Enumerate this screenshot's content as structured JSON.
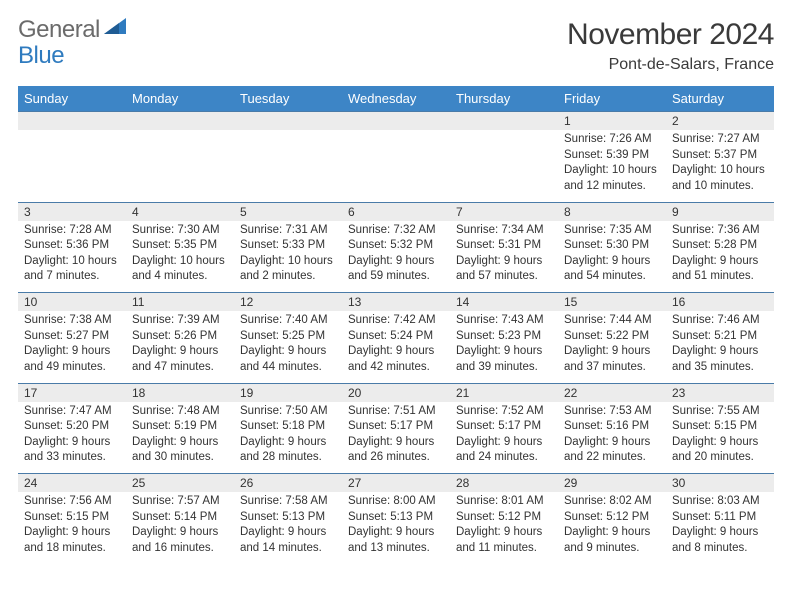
{
  "logo": {
    "text1": "General",
    "text2": "Blue"
  },
  "title": "November 2024",
  "location": "Pont-de-Salars, France",
  "colors": {
    "header_bg": "#3d85c6",
    "header_text": "#ffffff",
    "daynum_bg": "#ececec",
    "daynum_border": "#4a7ba8",
    "body_text": "#333333",
    "logo_gray": "#6b6b6b",
    "logo_blue": "#2f7bbf",
    "triangle_fill": "#2f7bbf"
  },
  "weekdays": [
    "Sunday",
    "Monday",
    "Tuesday",
    "Wednesday",
    "Thursday",
    "Friday",
    "Saturday"
  ],
  "weeks": [
    [
      null,
      null,
      null,
      null,
      null,
      {
        "n": "1",
        "sr": "Sunrise: 7:26 AM",
        "ss": "Sunset: 5:39 PM",
        "dl": "Daylight: 10 hours and 12 minutes."
      },
      {
        "n": "2",
        "sr": "Sunrise: 7:27 AM",
        "ss": "Sunset: 5:37 PM",
        "dl": "Daylight: 10 hours and 10 minutes."
      }
    ],
    [
      {
        "n": "3",
        "sr": "Sunrise: 7:28 AM",
        "ss": "Sunset: 5:36 PM",
        "dl": "Daylight: 10 hours and 7 minutes."
      },
      {
        "n": "4",
        "sr": "Sunrise: 7:30 AM",
        "ss": "Sunset: 5:35 PM",
        "dl": "Daylight: 10 hours and 4 minutes."
      },
      {
        "n": "5",
        "sr": "Sunrise: 7:31 AM",
        "ss": "Sunset: 5:33 PM",
        "dl": "Daylight: 10 hours and 2 minutes."
      },
      {
        "n": "6",
        "sr": "Sunrise: 7:32 AM",
        "ss": "Sunset: 5:32 PM",
        "dl": "Daylight: 9 hours and 59 minutes."
      },
      {
        "n": "7",
        "sr": "Sunrise: 7:34 AM",
        "ss": "Sunset: 5:31 PM",
        "dl": "Daylight: 9 hours and 57 minutes."
      },
      {
        "n": "8",
        "sr": "Sunrise: 7:35 AM",
        "ss": "Sunset: 5:30 PM",
        "dl": "Daylight: 9 hours and 54 minutes."
      },
      {
        "n": "9",
        "sr": "Sunrise: 7:36 AM",
        "ss": "Sunset: 5:28 PM",
        "dl": "Daylight: 9 hours and 51 minutes."
      }
    ],
    [
      {
        "n": "10",
        "sr": "Sunrise: 7:38 AM",
        "ss": "Sunset: 5:27 PM",
        "dl": "Daylight: 9 hours and 49 minutes."
      },
      {
        "n": "11",
        "sr": "Sunrise: 7:39 AM",
        "ss": "Sunset: 5:26 PM",
        "dl": "Daylight: 9 hours and 47 minutes."
      },
      {
        "n": "12",
        "sr": "Sunrise: 7:40 AM",
        "ss": "Sunset: 5:25 PM",
        "dl": "Daylight: 9 hours and 44 minutes."
      },
      {
        "n": "13",
        "sr": "Sunrise: 7:42 AM",
        "ss": "Sunset: 5:24 PM",
        "dl": "Daylight: 9 hours and 42 minutes."
      },
      {
        "n": "14",
        "sr": "Sunrise: 7:43 AM",
        "ss": "Sunset: 5:23 PM",
        "dl": "Daylight: 9 hours and 39 minutes."
      },
      {
        "n": "15",
        "sr": "Sunrise: 7:44 AM",
        "ss": "Sunset: 5:22 PM",
        "dl": "Daylight: 9 hours and 37 minutes."
      },
      {
        "n": "16",
        "sr": "Sunrise: 7:46 AM",
        "ss": "Sunset: 5:21 PM",
        "dl": "Daylight: 9 hours and 35 minutes."
      }
    ],
    [
      {
        "n": "17",
        "sr": "Sunrise: 7:47 AM",
        "ss": "Sunset: 5:20 PM",
        "dl": "Daylight: 9 hours and 33 minutes."
      },
      {
        "n": "18",
        "sr": "Sunrise: 7:48 AM",
        "ss": "Sunset: 5:19 PM",
        "dl": "Daylight: 9 hours and 30 minutes."
      },
      {
        "n": "19",
        "sr": "Sunrise: 7:50 AM",
        "ss": "Sunset: 5:18 PM",
        "dl": "Daylight: 9 hours and 28 minutes."
      },
      {
        "n": "20",
        "sr": "Sunrise: 7:51 AM",
        "ss": "Sunset: 5:17 PM",
        "dl": "Daylight: 9 hours and 26 minutes."
      },
      {
        "n": "21",
        "sr": "Sunrise: 7:52 AM",
        "ss": "Sunset: 5:17 PM",
        "dl": "Daylight: 9 hours and 24 minutes."
      },
      {
        "n": "22",
        "sr": "Sunrise: 7:53 AM",
        "ss": "Sunset: 5:16 PM",
        "dl": "Daylight: 9 hours and 22 minutes."
      },
      {
        "n": "23",
        "sr": "Sunrise: 7:55 AM",
        "ss": "Sunset: 5:15 PM",
        "dl": "Daylight: 9 hours and 20 minutes."
      }
    ],
    [
      {
        "n": "24",
        "sr": "Sunrise: 7:56 AM",
        "ss": "Sunset: 5:15 PM",
        "dl": "Daylight: 9 hours and 18 minutes."
      },
      {
        "n": "25",
        "sr": "Sunrise: 7:57 AM",
        "ss": "Sunset: 5:14 PM",
        "dl": "Daylight: 9 hours and 16 minutes."
      },
      {
        "n": "26",
        "sr": "Sunrise: 7:58 AM",
        "ss": "Sunset: 5:13 PM",
        "dl": "Daylight: 9 hours and 14 minutes."
      },
      {
        "n": "27",
        "sr": "Sunrise: 8:00 AM",
        "ss": "Sunset: 5:13 PM",
        "dl": "Daylight: 9 hours and 13 minutes."
      },
      {
        "n": "28",
        "sr": "Sunrise: 8:01 AM",
        "ss": "Sunset: 5:12 PM",
        "dl": "Daylight: 9 hours and 11 minutes."
      },
      {
        "n": "29",
        "sr": "Sunrise: 8:02 AM",
        "ss": "Sunset: 5:12 PM",
        "dl": "Daylight: 9 hours and 9 minutes."
      },
      {
        "n": "30",
        "sr": "Sunrise: 8:03 AM",
        "ss": "Sunset: 5:11 PM",
        "dl": "Daylight: 9 hours and 8 minutes."
      }
    ]
  ]
}
